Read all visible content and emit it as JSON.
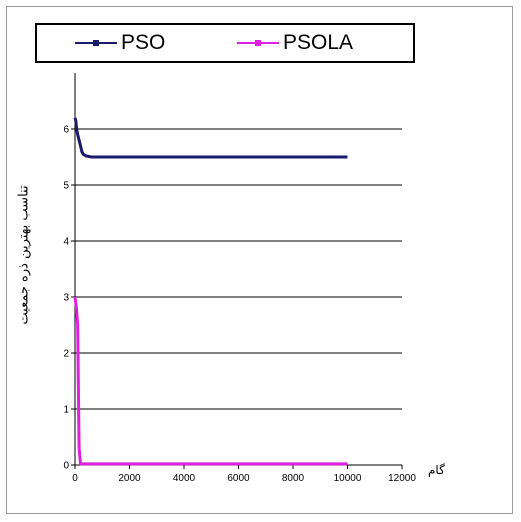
{
  "chart_data": {
    "type": "line",
    "title": "",
    "xlabel": "گام",
    "ylabel": "تناسب بهترین ذره جمعیت",
    "xlim": [
      0,
      12000
    ],
    "ylim": [
      0,
      7
    ],
    "x_ticks": [
      0,
      2000,
      4000,
      6000,
      8000,
      10000,
      12000
    ],
    "y_ticks": [
      0,
      1,
      2,
      3,
      4,
      5,
      6
    ],
    "y_tick_labels": [
      "0",
      "1",
      "2",
      "3",
      "4",
      "5",
      "6"
    ],
    "grid": "horizontal",
    "legend_position": "top",
    "series": [
      {
        "name": "PSO",
        "color": "#1a1a6e",
        "x": [
          0,
          30,
          60,
          100,
          150,
          200,
          250,
          300,
          400,
          600,
          1000,
          10000
        ],
        "y": [
          6.2,
          6.15,
          6.0,
          5.9,
          5.8,
          5.7,
          5.6,
          5.55,
          5.52,
          5.5,
          5.5,
          5.5
        ]
      },
      {
        "name": "PSOLA",
        "color": "#e020e0",
        "x": [
          0,
          50,
          100,
          120,
          150,
          200,
          10000
        ],
        "y": [
          3.0,
          2.8,
          2.5,
          1.5,
          0.3,
          0.02,
          0.02
        ]
      }
    ]
  }
}
